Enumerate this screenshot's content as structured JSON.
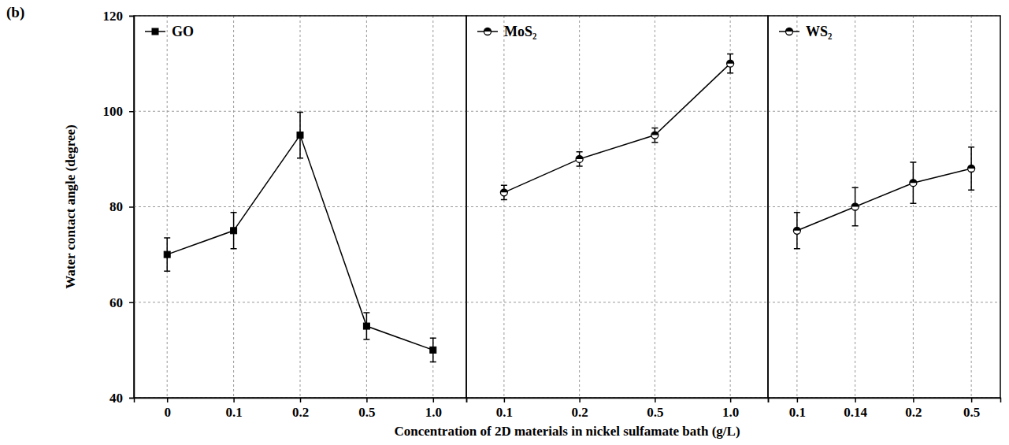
{
  "chart_data": {
    "type": "line",
    "panel_label": "(b)",
    "xlabel": "Concentration of 2D materials in nickel sulfamate bath (g/L)",
    "ylabel": "Water contact angle (degree)",
    "ylim": [
      40,
      120
    ],
    "yticks": [
      40,
      60,
      80,
      100,
      120
    ],
    "grid": true,
    "legend": "upper left",
    "panels": [
      {
        "categories": [
          "0",
          "0.1",
          "0.2",
          "0.5",
          "1.0"
        ],
        "series": [
          {
            "name": "GO",
            "color": "#000000",
            "marker": "square",
            "line_style": "solid",
            "values": [
              70,
              75,
              95,
              55,
              50
            ],
            "errors": [
              3.5,
              3.8,
              4.8,
              2.8,
              2.5
            ]
          }
        ]
      },
      {
        "categories": [
          "0.1",
          "0.2",
          "0.5",
          "1.0"
        ],
        "series": [
          {
            "name": "MoS₂",
            "color": "#000000",
            "marker": "half-filled-circle",
            "line_style": "solid",
            "values": [
              83,
              90,
              95,
              110
            ],
            "errors": [
              1.5,
              1.5,
              1.5,
              2
            ]
          }
        ]
      },
      {
        "categories": [
          "0.1",
          "0.14",
          "0.2",
          "0.5"
        ],
        "series": [
          {
            "name": "WS₂",
            "color": "#000000",
            "marker": "half-filled-circle",
            "line_style": "solid",
            "values": [
              75,
              80,
              85,
              88
            ],
            "errors": [
              3.8,
              4,
              4.3,
              4.5
            ]
          }
        ]
      }
    ]
  }
}
